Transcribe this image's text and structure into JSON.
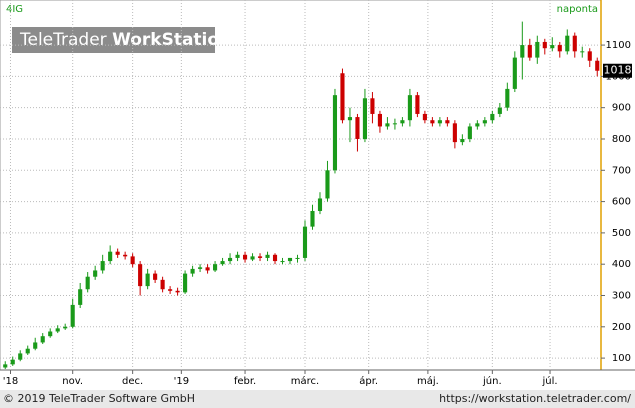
{
  "chart_data": {
    "type": "candlestick",
    "title": "4IG",
    "interval": "naponta",
    "watermark": {
      "brand": "TeleTrader",
      "product": "WorkStation"
    },
    "up_color": "#1a9a1a",
    "down_color": "#cc0000",
    "grid": true,
    "xlim": [
      -0.7,
      79.5
    ],
    "xticks": [
      {
        "value": 0.7,
        "label": "'18"
      },
      {
        "value": 9,
        "label": "nov."
      },
      {
        "value": 17,
        "label": "dec."
      },
      {
        "value": 23.5,
        "label": "'19"
      },
      {
        "value": 32,
        "label": "febr."
      },
      {
        "value": 40,
        "label": "márc."
      },
      {
        "value": 48.5,
        "label": "ápr."
      },
      {
        "value": 56.4,
        "label": "máj."
      },
      {
        "value": 65,
        "label": "jún."
      },
      {
        "value": 72.7,
        "label": "júl."
      }
    ],
    "ylim": [
      62,
      1244
    ],
    "yticks": [
      100,
      200,
      300,
      400,
      500,
      600,
      700,
      800,
      900,
      1000,
      1100
    ],
    "open": [
      70,
      80,
      95,
      115,
      130,
      150,
      170,
      185,
      195,
      200,
      270,
      320,
      360,
      380,
      410,
      440,
      430,
      425,
      400,
      330,
      370,
      350,
      320,
      315,
      310,
      370,
      385,
      390,
      380,
      400,
      410,
      420,
      430,
      415,
      425,
      420,
      430,
      410,
      410,
      420,
      420,
      520,
      570,
      610,
      700,
      1010,
      860,
      870,
      800,
      930,
      880,
      840,
      850,
      850,
      860,
      940,
      880,
      860,
      850,
      860,
      850,
      790,
      800,
      840,
      850,
      860,
      880,
      900,
      960,
      1060,
      1100,
      1060,
      1110,
      1090,
      1100,
      1080,
      1130,
      1080,
      1080,
      1050
    ],
    "high": [
      90,
      105,
      125,
      140,
      165,
      180,
      195,
      205,
      210,
      290,
      340,
      375,
      395,
      430,
      460,
      450,
      440,
      435,
      410,
      385,
      380,
      360,
      330,
      325,
      380,
      395,
      400,
      400,
      410,
      420,
      435,
      440,
      440,
      435,
      435,
      440,
      435,
      420,
      420,
      430,
      540,
      590,
      630,
      730,
      960,
      1025,
      900,
      880,
      960,
      950,
      890,
      870,
      865,
      870,
      960,
      950,
      890,
      870,
      870,
      870,
      860,
      815,
      850,
      860,
      870,
      890,
      915,
      980,
      1080,
      1175,
      1120,
      1130,
      1120,
      1125,
      1110,
      1150,
      1140,
      1095,
      1090,
      1060
    ],
    "low": [
      65,
      75,
      90,
      110,
      125,
      145,
      165,
      180,
      190,
      195,
      260,
      310,
      350,
      370,
      400,
      420,
      415,
      390,
      300,
      320,
      340,
      310,
      305,
      300,
      305,
      360,
      375,
      370,
      375,
      395,
      400,
      410,
      405,
      410,
      410,
      410,
      400,
      400,
      400,
      405,
      410,
      510,
      560,
      600,
      690,
      850,
      790,
      760,
      790,
      850,
      820,
      830,
      830,
      840,
      840,
      870,
      850,
      840,
      840,
      840,
      770,
      780,
      790,
      830,
      840,
      850,
      870,
      890,
      950,
      990,
      1050,
      1040,
      1070,
      1080,
      1060,
      1070,
      1060,
      1060,
      1030,
      1000
    ],
    "close": [
      80,
      95,
      115,
      130,
      150,
      170,
      185,
      195,
      200,
      270,
      320,
      360,
      380,
      410,
      440,
      430,
      425,
      400,
      330,
      370,
      350,
      320,
      315,
      310,
      370,
      385,
      390,
      380,
      400,
      410,
      420,
      430,
      415,
      425,
      420,
      430,
      410,
      410,
      420,
      420,
      520,
      570,
      610,
      700,
      940,
      860,
      870,
      800,
      930,
      880,
      840,
      850,
      850,
      860,
      940,
      880,
      860,
      850,
      860,
      850,
      790,
      800,
      840,
      850,
      860,
      880,
      900,
      960,
      1060,
      1100,
      1060,
      1110,
      1090,
      1100,
      1080,
      1130,
      1080,
      1080,
      1050,
      1018
    ]
  },
  "footer": {
    "copyright": "© 2019 TeleTrader Software GmbH",
    "url": "https://workstation.teletrader.com/"
  }
}
